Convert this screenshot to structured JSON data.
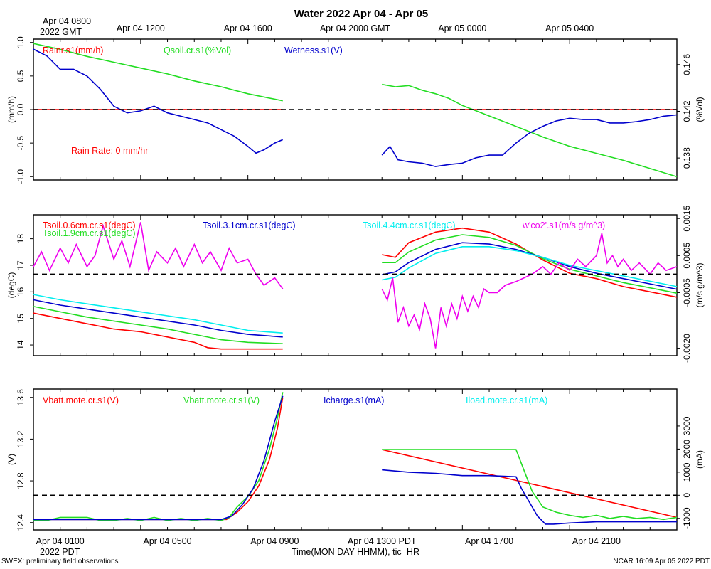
{
  "title": "Water 2022 Apr 04 - Apr 05",
  "top_time_labels": [
    {
      "t": 0,
      "text": "Apr 04 0800"
    },
    {
      "t": 4,
      "text": "Apr 04 1200"
    },
    {
      "t": 8,
      "text": "Apr 04 1600"
    },
    {
      "t": 12,
      "text": "Apr 04 2000 GMT"
    },
    {
      "t": 16,
      "text": "Apr 05 0000"
    },
    {
      "t": 20,
      "text": "Apr 05 0400"
    }
  ],
  "top_year_label": "2022 GMT",
  "bottom_time_labels": [
    {
      "t": 1,
      "text": "Apr 04 0100"
    },
    {
      "t": 5,
      "text": "Apr 04 0500"
    },
    {
      "t": 9,
      "text": "Apr 04 0900"
    },
    {
      "t": 13,
      "text": "Apr 04 1300 PDT"
    },
    {
      "t": 17,
      "text": "Apr 04 1700"
    },
    {
      "t": 21,
      "text": "Apr 04 2100"
    }
  ],
  "bottom_year_label": "2022 PDT",
  "xlabel": "Time(MON DAY HHMM), tic=HR",
  "footer_left": "SWEX: preliminary field observations",
  "footer_right": "NCAR 16:09 Apr 05 2022 PDT",
  "colors": {
    "red": "#ff0000",
    "green": "#22dd22",
    "blue": "#0000cc",
    "cyan": "#00eeee",
    "magenta": "#ee00ee",
    "black": "#000000"
  },
  "chart_data": [
    {
      "type": "line",
      "panel": "water",
      "x_range_hours": [
        0,
        24
      ],
      "gap_hours": [
        9.3,
        13.0
      ],
      "left_axis": {
        "label": "(mm/h)",
        "ylim": [
          -1.05,
          1.05
        ],
        "ticks": [
          "1.0",
          "0.5",
          "0.0",
          "-0.5",
          "-1.0"
        ],
        "tick_values": [
          1.0,
          0.5,
          0.0,
          -0.5,
          -1.0
        ]
      },
      "right_axis": {
        "label": "(%Vol)",
        "ylim": [
          0.13612,
          0.14818
        ],
        "ticks": [
          "0.146",
          "0.142",
          "0.138"
        ],
        "tick_values": [
          0.146,
          0.142,
          0.138
        ]
      },
      "reference_line": {
        "axis": "left",
        "value": 0.0
      },
      "annotation": "Rain Rate: 0 mm/hr",
      "series": [
        {
          "name": "Rainr.s1(mm/h)",
          "color": "red",
          "axis": "left",
          "x": [
            0,
            9.3,
            13.0,
            24
          ],
          "values": [
            0,
            0,
            0,
            0
          ]
        },
        {
          "name": "Qsoil.cr.s1(%Vol)",
          "color": "green",
          "axis": "right",
          "x": [
            0,
            1,
            2,
            3,
            4,
            5,
            6,
            7,
            8,
            9.3,
            13.0,
            13.5,
            14,
            14.5,
            15,
            15.5,
            16,
            17,
            18,
            19,
            20,
            21,
            22,
            23,
            24
          ],
          "values": [
            0.1478,
            0.1473,
            0.1467,
            0.1462,
            0.1457,
            0.1452,
            0.1446,
            0.1441,
            0.1435,
            0.1429,
            0.1443,
            0.1441,
            0.1442,
            0.1438,
            0.1435,
            0.1431,
            0.1425,
            0.1416,
            0.1407,
            0.1398,
            0.139,
            0.1384,
            0.1378,
            0.1371,
            0.1364
          ]
        },
        {
          "name": "Wetness.s1(V)",
          "color": "blue",
          "axis": "left",
          "x": [
            0,
            0.5,
            1,
            1.5,
            2,
            2.5,
            3,
            3.5,
            4,
            4.5,
            5,
            5.5,
            6,
            6.5,
            7,
            7.5,
            8,
            8.3,
            8.6,
            9,
            9.3,
            13.0,
            13.3,
            13.6,
            14,
            14.5,
            15,
            15.5,
            16,
            16.5,
            17,
            17.5,
            18,
            18.5,
            19,
            19.5,
            20,
            20.5,
            21,
            21.5,
            22,
            22.5,
            23,
            23.5,
            24
          ],
          "values": [
            0.9,
            0.8,
            0.6,
            0.6,
            0.5,
            0.3,
            0.05,
            -0.05,
            -0.02,
            0.05,
            -0.05,
            -0.1,
            -0.15,
            -0.2,
            -0.3,
            -0.4,
            -0.55,
            -0.65,
            -0.6,
            -0.5,
            -0.45,
            -0.68,
            -0.55,
            -0.75,
            -0.78,
            -0.8,
            -0.85,
            -0.82,
            -0.8,
            -0.72,
            -0.68,
            -0.68,
            -0.5,
            -0.35,
            -0.25,
            -0.17,
            -0.13,
            -0.15,
            -0.15,
            -0.2,
            -0.2,
            -0.18,
            -0.15,
            -0.1,
            -0.08
          ]
        }
      ]
    },
    {
      "type": "line",
      "panel": "soil-temperature",
      "x_range_hours": [
        0,
        24
      ],
      "gap_hours": [
        9.3,
        13.0
      ],
      "left_axis": {
        "label": "(degC)",
        "ylim": [
          13.6,
          18.9
        ],
        "ticks": [
          "18",
          "17",
          "16",
          "15",
          "14"
        ],
        "tick_values": [
          18,
          17,
          16,
          15,
          14
        ]
      },
      "right_axis": {
        "label": "(m/s g/m^3)",
        "ylim": [
          -0.0022,
          0.0016
        ],
        "ticks": [
          "0.0015",
          "0.0005",
          "-0.0005",
          "-0.0020"
        ],
        "tick_values": [
          0.0015,
          0.0005,
          -0.0005,
          -0.002
        ]
      },
      "reference_line": {
        "axis": "right",
        "value": 0.0
      },
      "series": [
        {
          "name": "Tsoil.0.6cm.cr.s1(degC)",
          "color": "red",
          "axis": "left",
          "x": [
            0,
            1,
            2,
            3,
            4,
            5,
            6,
            6.5,
            7,
            8,
            9.3,
            13.0,
            13.5,
            14,
            15,
            16,
            17,
            18,
            19,
            20,
            21,
            22,
            23,
            24
          ],
          "values": [
            15.2,
            15.0,
            14.8,
            14.6,
            14.5,
            14.3,
            14.1,
            13.9,
            13.85,
            13.85,
            13.85,
            17.4,
            17.3,
            17.85,
            18.25,
            18.4,
            18.25,
            17.8,
            17.2,
            16.7,
            16.5,
            16.2,
            16.0,
            15.8
          ]
        },
        {
          "name": "Tsoil.1.9cm.cr.s1(degC)",
          "color": "green",
          "axis": "left",
          "x": [
            0,
            1,
            2,
            3,
            4,
            5,
            6,
            7,
            8,
            9.3,
            13.0,
            13.5,
            14,
            15,
            16,
            17,
            18,
            19,
            20,
            21,
            22,
            23,
            24
          ],
          "values": [
            15.45,
            15.25,
            15.05,
            14.9,
            14.75,
            14.6,
            14.4,
            14.2,
            14.1,
            14.05,
            17.1,
            17.1,
            17.5,
            17.95,
            18.15,
            18.05,
            17.75,
            17.25,
            16.85,
            16.6,
            16.35,
            16.15,
            15.95
          ]
        },
        {
          "name": "Tsoil.3.1cm.cr.s1(degC)",
          "color": "blue",
          "axis": "left",
          "x": [
            0,
            1,
            2,
            3,
            4,
            5,
            6,
            7,
            8,
            9.3,
            13.0,
            13.5,
            14,
            15,
            16,
            17,
            18,
            19,
            20,
            21,
            22,
            23,
            24
          ],
          "values": [
            15.7,
            15.5,
            15.35,
            15.2,
            15.05,
            14.9,
            14.75,
            14.55,
            14.4,
            14.3,
            16.65,
            16.75,
            17.1,
            17.6,
            17.85,
            17.8,
            17.6,
            17.3,
            16.95,
            16.7,
            16.5,
            16.3,
            16.1
          ]
        },
        {
          "name": "Tsoil.4.4cm.cr.s1(degC)",
          "color": "cyan",
          "axis": "left",
          "x": [
            0,
            1,
            2,
            3,
            4,
            5,
            6,
            7,
            8,
            9.3,
            13.0,
            13.5,
            14,
            15,
            16,
            17,
            18,
            19,
            20,
            21,
            22,
            23,
            24
          ],
          "values": [
            15.9,
            15.7,
            15.55,
            15.4,
            15.25,
            15.1,
            14.95,
            14.75,
            14.55,
            14.45,
            16.45,
            16.55,
            16.9,
            17.45,
            17.7,
            17.7,
            17.55,
            17.3,
            17.0,
            16.8,
            16.6,
            16.4,
            16.2
          ]
        },
        {
          "name": "w'co2'.s1(m/s g/m^3)",
          "color": "magenta",
          "axis": "right",
          "x": [
            0,
            0.3,
            0.6,
            1,
            1.3,
            1.6,
            2,
            2.3,
            2.6,
            3,
            3.3,
            3.6,
            4,
            4.3,
            4.6,
            5,
            5.3,
            5.6,
            6,
            6.3,
            6.6,
            7,
            7.3,
            7.6,
            8,
            8.3,
            8.6,
            9,
            9.3,
            13.0,
            13.2,
            13.4,
            13.6,
            13.8,
            14,
            14.2,
            14.4,
            14.6,
            14.8,
            15,
            15.2,
            15.4,
            15.6,
            15.8,
            16,
            16.2,
            16.4,
            16.6,
            16.8,
            17,
            17.3,
            17.6,
            18,
            18.3,
            18.6,
            19,
            19.3,
            19.6,
            20,
            20.3,
            20.6,
            21,
            21.2,
            21.4,
            21.6,
            21.8,
            22,
            22.3,
            22.6,
            23,
            23.3,
            23.6,
            24
          ],
          "values": [
            0.0002,
            0.0006,
            0.0001,
            0.0007,
            0.0003,
            0.0008,
            0.0002,
            0.0005,
            0.0013,
            0.0004,
            0.0009,
            0.0002,
            0.0014,
            0.0001,
            0.0006,
            0.0003,
            0.0007,
            0.0002,
            0.0008,
            0.0003,
            0.0006,
            0.0001,
            0.0007,
            0.0003,
            0.0004,
            0.0,
            -0.0003,
            -0.0001,
            -0.0004,
            -0.0004,
            -0.0007,
            -0.0001,
            -0.0013,
            -0.0009,
            -0.0014,
            -0.0011,
            -0.0015,
            -0.0008,
            -0.0012,
            -0.002,
            -0.0009,
            -0.0014,
            -0.0008,
            -0.0012,
            -0.0006,
            -0.001,
            -0.0006,
            -0.0009,
            -0.0004,
            -0.0005,
            -0.0005,
            -0.0003,
            -0.0002,
            -0.0001,
            0.0,
            0.0002,
            0.0,
            0.0003,
            0.0001,
            0.0004,
            0.0002,
            0.0005,
            0.0011,
            0.0003,
            0.0005,
            0.0002,
            0.0004,
            0.0001,
            0.0003,
            0.0,
            0.0003,
            0.0001,
            0.0002
          ]
        }
      ]
    },
    {
      "type": "line",
      "panel": "battery",
      "x_range_hours": [
        0,
        24
      ],
      "gap_hours": [
        9.3,
        13.0
      ],
      "left_axis": {
        "label": "(V)",
        "ylim": [
          12.33,
          13.68
        ],
        "ticks": [
          "13.6",
          "13.2",
          "12.8",
          "12.4"
        ],
        "tick_values": [
          13.6,
          13.2,
          12.8,
          12.4
        ]
      },
      "right_axis": {
        "label": "(mA)",
        "ylim": [
          -1500,
          4600
        ],
        "ticks": [
          "3000",
          "2000",
          "1000",
          "0",
          "-1000"
        ],
        "tick_values": [
          3000,
          2000,
          1000,
          0,
          -1000
        ]
      },
      "reference_line": {
        "axis": "right",
        "value": 0
      },
      "series": [
        {
          "name": "Vbatt.mote.cr.s1(V)",
          "color": "red",
          "axis": "left",
          "x": [
            0,
            7.2,
            7.6,
            8,
            8.4,
            8.8,
            9.1,
            9.3,
            13.0,
            24
          ],
          "values": [
            12.43,
            12.43,
            12.5,
            12.6,
            12.75,
            13.0,
            13.3,
            13.6,
            13.1,
            12.45
          ]
        },
        {
          "name": "Vbatt.mote.cr.s1(V)",
          "color": "green",
          "axis": "left",
          "x": [
            0,
            0.5,
            1,
            1.5,
            2,
            2.5,
            3,
            3.5,
            4,
            4.5,
            5,
            5.5,
            6,
            6.5,
            7,
            7.3,
            7.6,
            8,
            8.4,
            8.8,
            9.1,
            9.3,
            13.0,
            14,
            15,
            16,
            17,
            18,
            18.3,
            18.6,
            19,
            19.5,
            20,
            20.5,
            21,
            21.5,
            22,
            22.5,
            23,
            23.5,
            24
          ],
          "values": [
            12.42,
            12.42,
            12.45,
            12.45,
            12.45,
            12.42,
            12.42,
            12.44,
            12.42,
            12.45,
            12.42,
            12.44,
            12.42,
            12.44,
            12.42,
            12.45,
            12.55,
            12.65,
            12.8,
            13.1,
            13.4,
            13.65,
            13.1,
            13.1,
            13.1,
            13.1,
            13.1,
            13.1,
            12.9,
            12.7,
            12.55,
            12.5,
            12.47,
            12.45,
            12.47,
            12.44,
            12.46,
            12.44,
            12.45,
            12.43,
            12.45
          ]
        },
        {
          "name": "Icharge.s1(mA)",
          "color": "blue",
          "axis": "right",
          "x": [
            0,
            1,
            2,
            3,
            4,
            5,
            6,
            7,
            7.4,
            7.8,
            8.2,
            8.6,
            9,
            9.3,
            13.0,
            14,
            15,
            16,
            17,
            18,
            18.2,
            18.5,
            18.8,
            19.1,
            19.4,
            20,
            21,
            22,
            23,
            24
          ],
          "values": [
            -1050,
            -1050,
            -1050,
            -1050,
            -1050,
            -1050,
            -1050,
            -1050,
            -900,
            -400,
            300,
            1500,
            3200,
            4300,
            1100,
            1000,
            950,
            850,
            850,
            800,
            300,
            -300,
            -900,
            -1250,
            -1250,
            -1200,
            -1150,
            -1150,
            -1150,
            -1150
          ]
        },
        {
          "name": "Iload.mote.cr.s1(mA)",
          "color": "cyan",
          "axis": "right",
          "x": [
            0,
            24
          ],
          "values": [
            0,
            0
          ]
        }
      ]
    }
  ]
}
